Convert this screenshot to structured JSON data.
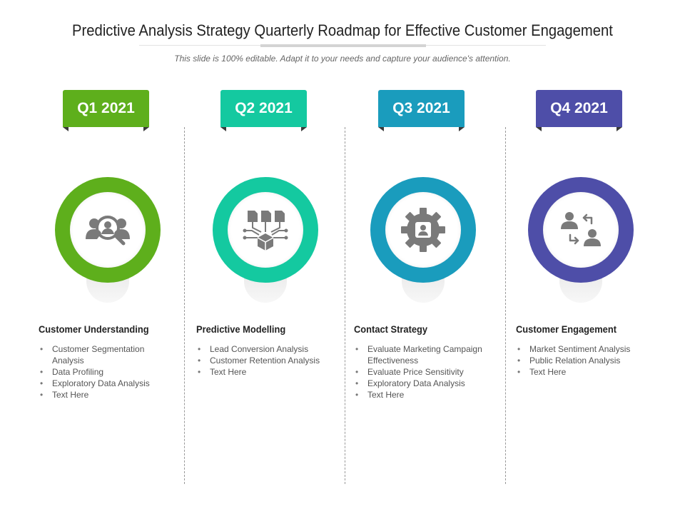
{
  "header": {
    "title": "Predictive Analysis Strategy Quarterly Roadmap for Effective Customer Engagement",
    "subtitle": "This slide is 100% editable. Adapt it to your needs and capture your audience's attention."
  },
  "quarters": [
    {
      "label": "Q1 2021",
      "color": "#5eaf1c",
      "icon": "customer-search-icon",
      "title": "Customer Understanding",
      "bullets": [
        "Customer Segmentation Analysis",
        "Data Profiling",
        "Exploratory Data Analysis",
        "Text Here"
      ]
    },
    {
      "label": "Q2 2021",
      "color": "#14c9a0",
      "icon": "data-flow-icon",
      "title": "Predictive Modelling",
      "bullets": [
        "Lead Conversion Analysis",
        "Customer Retention Analysis",
        "Text Here"
      ]
    },
    {
      "label": "Q3 2021",
      "color": "#1a9cbd",
      "icon": "gear-user-icon",
      "title": "Contact Strategy",
      "bullets": [
        "Evaluate Marketing Campaign Effectiveness",
        "Evaluate Price Sensitivity",
        "Exploratory Data Analysis",
        "Text Here"
      ]
    },
    {
      "label": "Q4 2021",
      "color": "#4e4ea8",
      "icon": "user-exchange-icon",
      "title": "Customer Engagement",
      "bullets": [
        "Market Sentiment Analysis",
        "Public Relation Analysis",
        "Text Here"
      ]
    }
  ]
}
